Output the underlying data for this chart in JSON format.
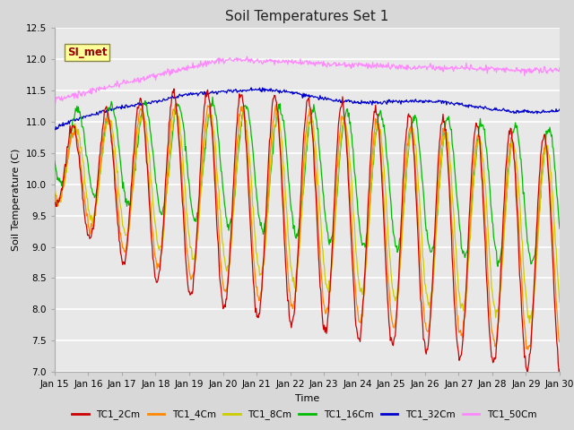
{
  "title": "Soil Temperatures Set 1",
  "xlabel": "Time",
  "ylabel": "Soil Temperature (C)",
  "ylim": [
    7.0,
    12.5
  ],
  "yticks": [
    7.0,
    7.5,
    8.0,
    8.5,
    9.0,
    9.5,
    10.0,
    10.5,
    11.0,
    11.5,
    12.0,
    12.5
  ],
  "xtick_labels": [
    "Jan 15",
    "Jan 16",
    "Jan 17",
    "Jan 18",
    "Jan 19",
    "Jan 20",
    "Jan 21",
    "Jan 22",
    "Jan 23",
    "Jan 24",
    "Jan 25",
    "Jan 26",
    "Jan 27",
    "Jan 28",
    "Jan 29",
    "Jan 30"
  ],
  "num_days": 15,
  "points_per_day": 48,
  "annotation_text": "SI_met",
  "colors": {
    "TC1_2Cm": "#cc0000",
    "TC1_4Cm": "#ff8800",
    "TC1_8Cm": "#cccc00",
    "TC1_16Cm": "#00bb00",
    "TC1_32Cm": "#0000cc",
    "TC1_50Cm": "#ff88ff"
  },
  "bg_color": "#d8d8d8",
  "plot_bg": "#e8e8e8",
  "grid_color": "#ffffff",
  "title_fontsize": 11,
  "axis_fontsize": 8,
  "tick_fontsize": 7.5
}
